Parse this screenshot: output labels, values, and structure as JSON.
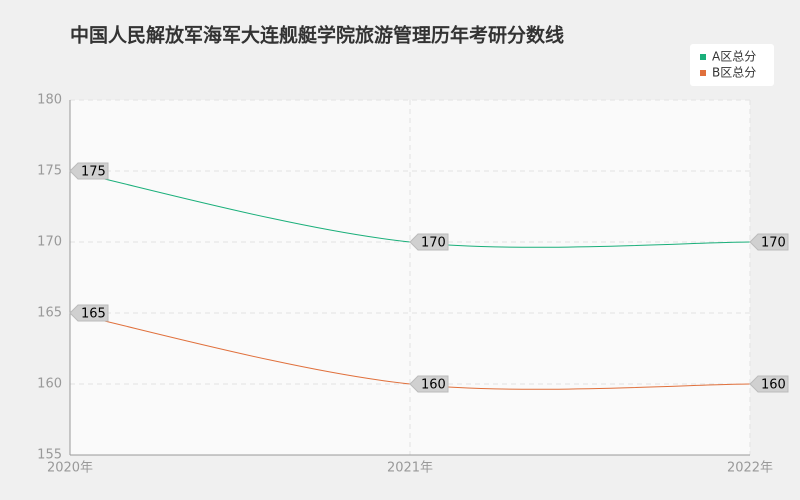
{
  "chart_data": {
    "type": "line",
    "title": "中国人民解放军海军大连舰艇学院旅游管理历年考研分数线",
    "categories": [
      "2020年",
      "2021年",
      "2022年"
    ],
    "series": [
      {
        "name": "A区总分",
        "color": "#1aaf7a",
        "values": [
          175,
          170,
          170
        ]
      },
      {
        "name": "B区总分",
        "color": "#e0703c",
        "values": [
          165,
          160,
          160
        ]
      }
    ],
    "ylim": [
      155,
      180
    ],
    "yticks": [
      155,
      160,
      165,
      170,
      175,
      180
    ],
    "grid": true,
    "legend": "top-right"
  }
}
